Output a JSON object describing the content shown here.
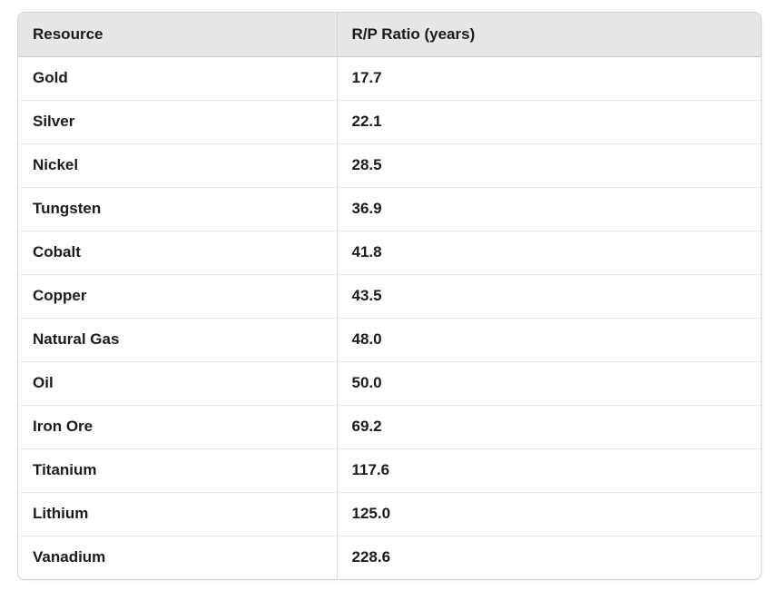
{
  "table": {
    "columns": [
      {
        "key": "resource",
        "label": "Resource"
      },
      {
        "key": "ratio",
        "label": "R/P Ratio (years)"
      }
    ],
    "rows": [
      {
        "resource": "Gold",
        "ratio": "17.7"
      },
      {
        "resource": "Silver",
        "ratio": "22.1"
      },
      {
        "resource": "Nickel",
        "ratio": "28.5"
      },
      {
        "resource": "Tungsten",
        "ratio": "36.9"
      },
      {
        "resource": "Cobalt",
        "ratio": "41.8"
      },
      {
        "resource": "Copper",
        "ratio": "43.5"
      },
      {
        "resource": "Natural Gas",
        "ratio": "48.0"
      },
      {
        "resource": "Oil",
        "ratio": "50.0"
      },
      {
        "resource": "Iron Ore",
        "ratio": "69.2"
      },
      {
        "resource": "Titanium",
        "ratio": "117.6"
      },
      {
        "resource": "Lithium",
        "ratio": "125.0"
      },
      {
        "resource": "Vanadium",
        "ratio": "228.6"
      }
    ],
    "colors": {
      "header_background": "#e6e6e6",
      "border": "#d4d4d4",
      "row_divider": "#e8e8e8",
      "text": "#1b1b1b"
    }
  },
  "chart_data": {
    "type": "table",
    "title": "",
    "categories": [
      "Gold",
      "Silver",
      "Nickel",
      "Tungsten",
      "Cobalt",
      "Copper",
      "Natural Gas",
      "Oil",
      "Iron Ore",
      "Titanium",
      "Lithium",
      "Vanadium"
    ],
    "values": [
      17.7,
      22.1,
      28.5,
      36.9,
      41.8,
      43.5,
      48.0,
      50.0,
      69.2,
      117.6,
      125.0,
      228.6
    ],
    "xlabel": "Resource",
    "ylabel": "R/P Ratio (years)"
  }
}
